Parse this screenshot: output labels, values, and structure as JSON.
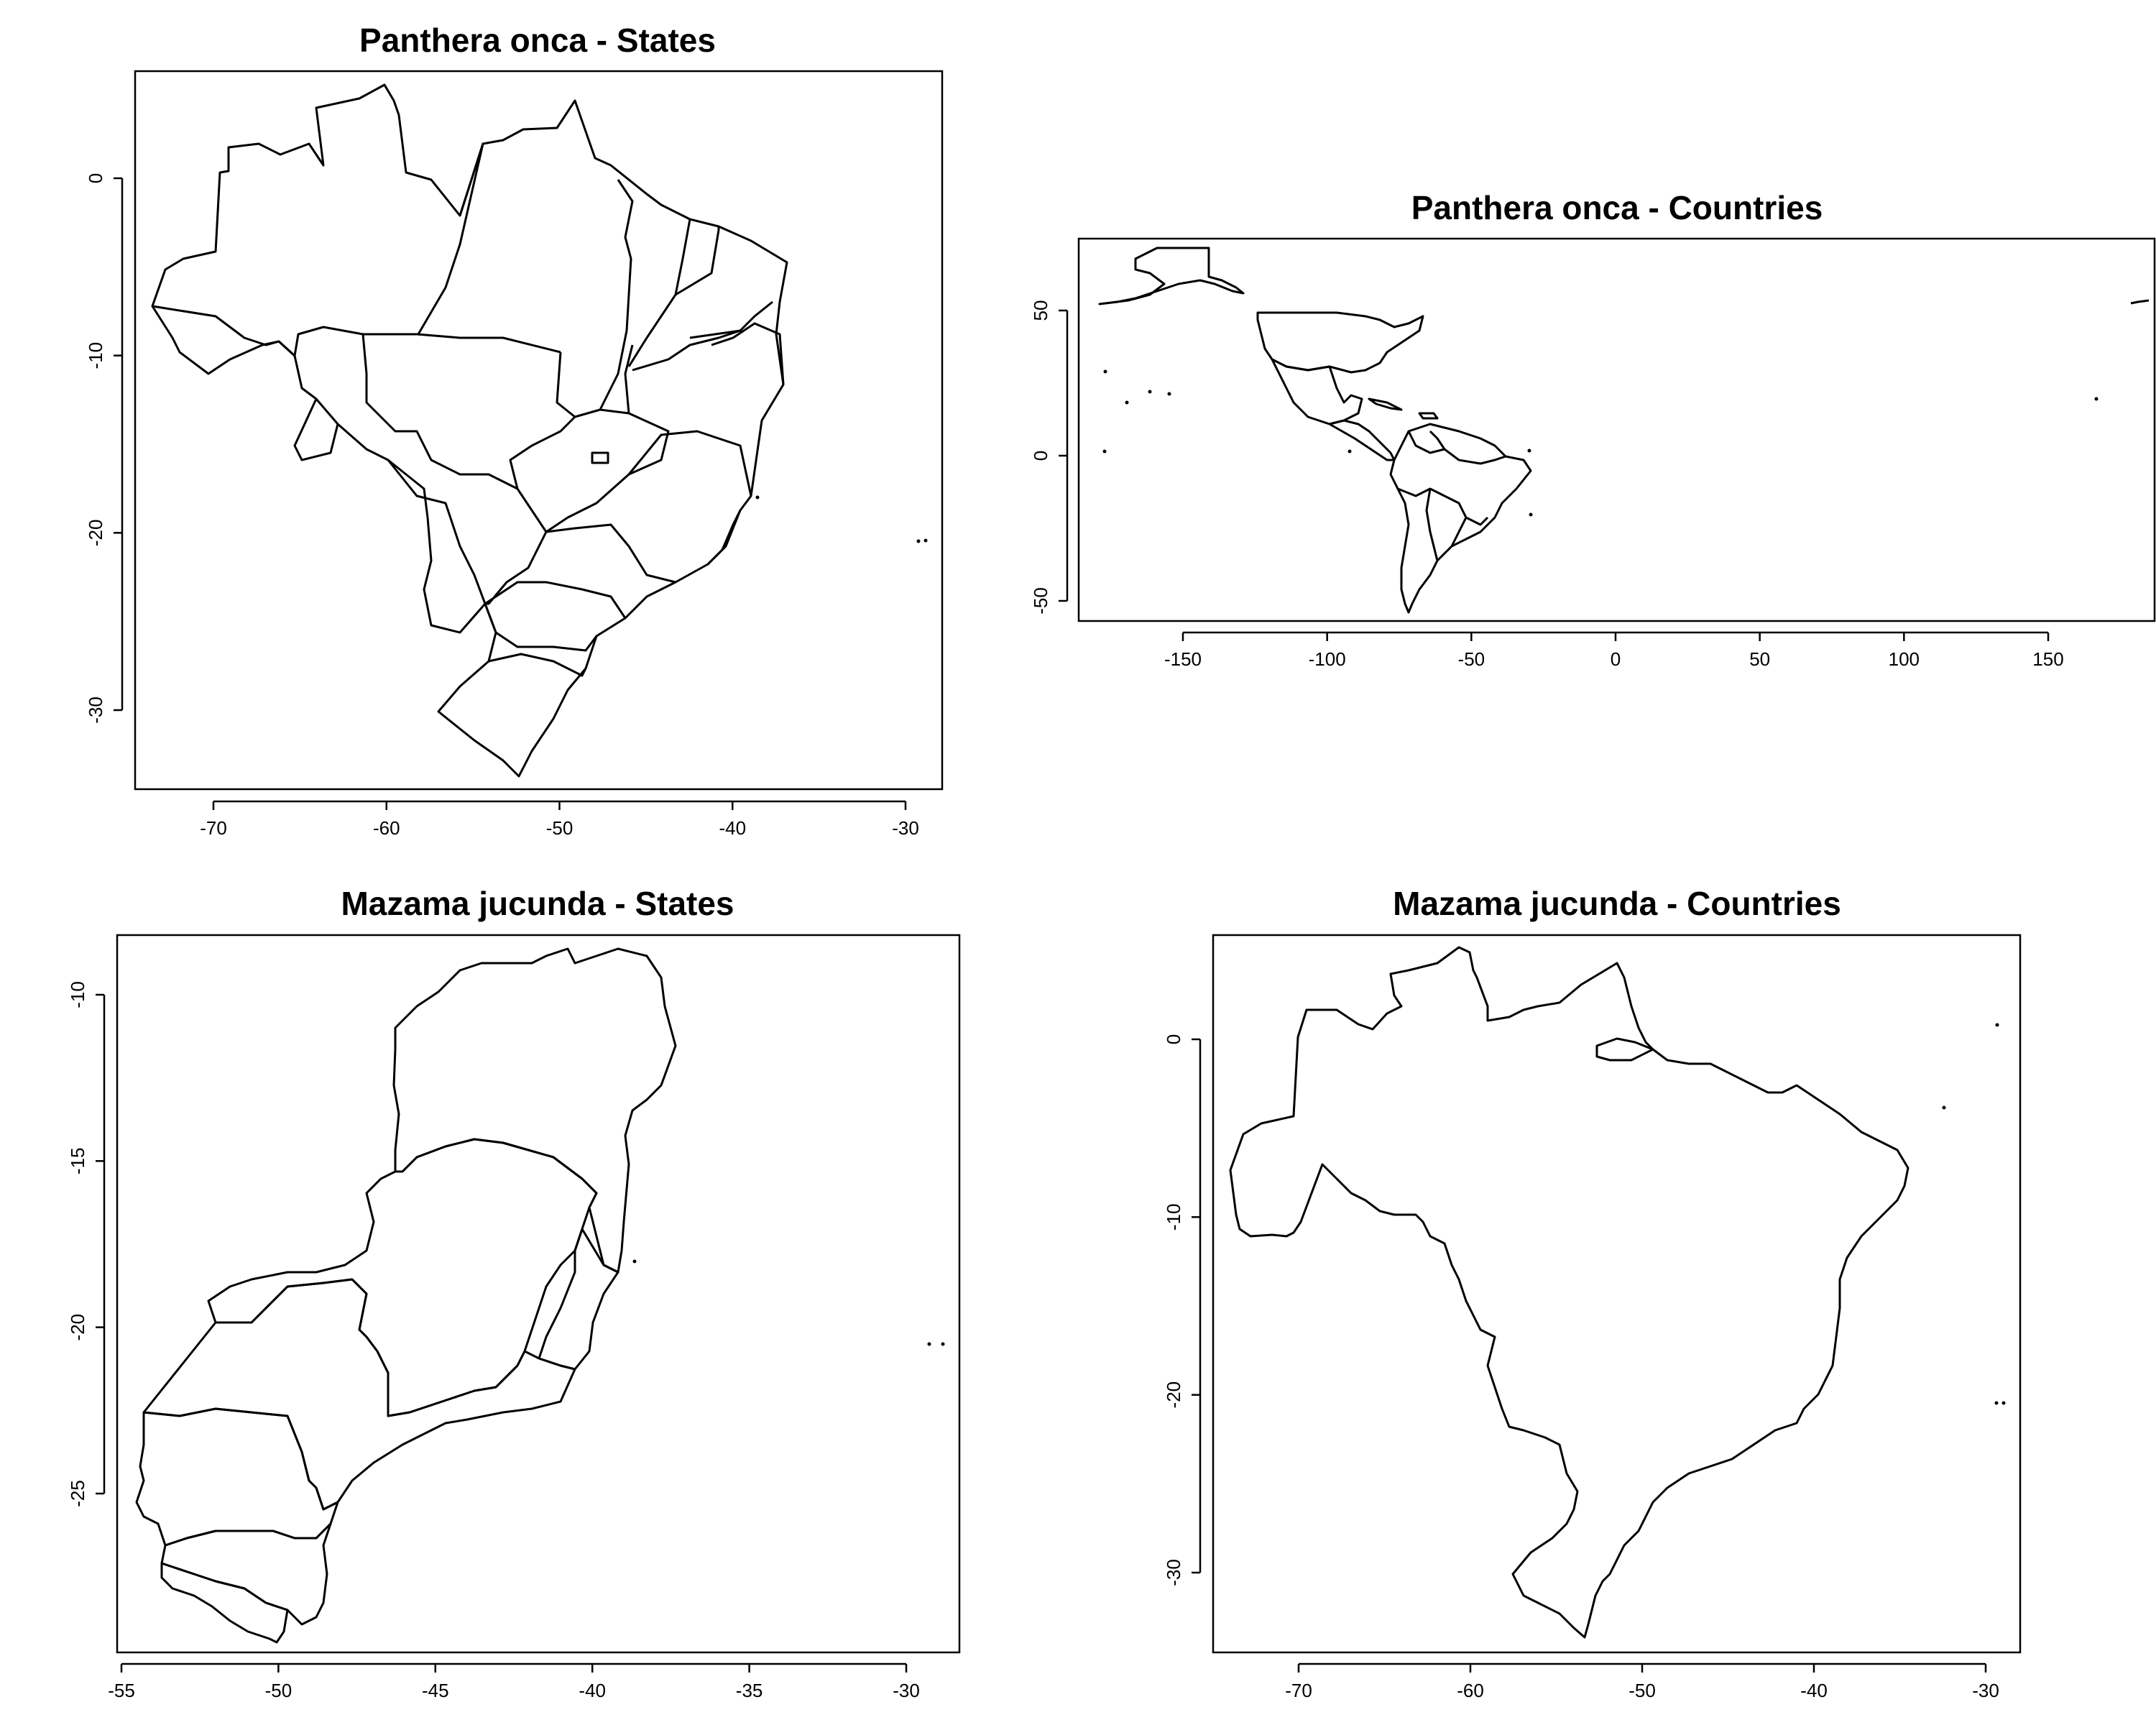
{
  "figure": {
    "background": "#ffffff",
    "line_color": "#000000"
  },
  "panels": [
    {
      "id": "panthera-states",
      "title": "Panthera onca - States",
      "xlim": [
        -74.5,
        -28
      ],
      "ylim": [
        -34.5,
        6
      ],
      "xticks": [
        -70,
        -60,
        -50,
        -40,
        -30
      ],
      "yticks": [
        0,
        -10,
        -20,
        -30
      ],
      "xtick_labels": [
        "-70",
        "-60",
        "-50",
        "-40",
        "-30"
      ],
      "ytick_labels": [
        "0",
        "-10",
        "-20",
        "-30"
      ],
      "content": "Brazilian states outlines"
    },
    {
      "id": "panthera-countries",
      "title": "Panthera onca - Countries",
      "xlim": [
        -187,
        187
      ],
      "ylim": [
        -58,
        75
      ],
      "xticks": [
        -150,
        -100,
        -50,
        0,
        50,
        100,
        150
      ],
      "yticks": [
        50,
        0,
        -50
      ],
      "xtick_labels": [
        "-150",
        "-100",
        "-50",
        "0",
        "50",
        "100",
        "150"
      ],
      "ytick_labels": [
        "50",
        "0",
        "-50"
      ],
      "content": "Countries of the Americas outlines"
    },
    {
      "id": "mazama-states",
      "title": "Mazama jucunda - States",
      "xlim": [
        -55.2,
        -28.5
      ],
      "ylim": [
        -29.8,
        -8.2
      ],
      "xticks": [
        -55,
        -50,
        -45,
        -40,
        -35,
        -30
      ],
      "yticks": [
        -10,
        -15,
        -20,
        -25
      ],
      "xtick_labels": [
        "-55",
        "-50",
        "-45",
        "-40",
        "-35",
        "-30"
      ],
      "ytick_labels": [
        "-10",
        "-15",
        "-20",
        "-25"
      ],
      "content": "Southeastern and southern Brazilian states outlines"
    },
    {
      "id": "mazama-countries",
      "title": "Mazama jucunda - Countries",
      "xlim": [
        -74.5,
        -28
      ],
      "ylim": [
        -34.5,
        6
      ],
      "xticks": [
        -70,
        -60,
        -50,
        -40,
        -30
      ],
      "yticks": [
        0,
        -10,
        -20,
        -30
      ],
      "xtick_labels": [
        "-70",
        "-60",
        "-50",
        "-40",
        "-30"
      ],
      "ytick_labels": [
        "0",
        "-10",
        "-20",
        "-30"
      ],
      "content": "Brazil country outline"
    }
  ]
}
